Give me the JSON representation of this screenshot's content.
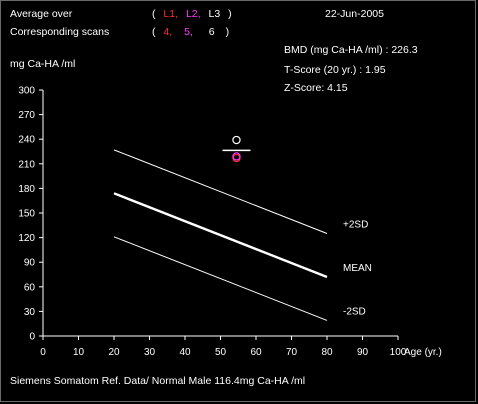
{
  "header": {
    "average_over_label": "Average over",
    "paren_open": "(",
    "paren_close": ")",
    "vertebrae": [
      "L1,",
      "L2,",
      "L3"
    ],
    "date": "22-Jun-2005",
    "scans_label": "Corresponding scans",
    "scans": [
      "4,",
      "5,",
      "6"
    ]
  },
  "results": {
    "bmd": "BMD (mg Ca-HA /ml) : 226.3",
    "t_score": "T-Score (20 yr.) : 1.95",
    "z_score": "Z-Score: 4.15"
  },
  "footer": {
    "reference": "Siemens Somatom Ref. Data/ Normal Male 116.4mg Ca-HA /ml"
  },
  "colors": {
    "background": "#000000",
    "foreground": "#ffffff",
    "l1": "#ff2a2a",
    "l2": "#ff3cff",
    "l3": "#ffffff"
  },
  "chart_data": {
    "type": "line",
    "title": "",
    "xlabel": "Age (yr.)",
    "ylabel": "mg Ca-HA /ml",
    "xlim": [
      0,
      100
    ],
    "ylim": [
      0,
      300
    ],
    "xticks": [
      0,
      10,
      20,
      30,
      40,
      50,
      60,
      70,
      80,
      90,
      100
    ],
    "yticks": [
      0,
      30,
      60,
      90,
      120,
      150,
      180,
      210,
      240,
      270,
      300
    ],
    "grid": false,
    "series": [
      {
        "name": "+2SD",
        "x": [
          20,
          80
        ],
        "y": [
          227,
          125
        ],
        "color": "#ffffff",
        "weight": "thin"
      },
      {
        "name": "MEAN",
        "x": [
          20,
          80
        ],
        "y": [
          174,
          72
        ],
        "color": "#ffffff",
        "weight": "thick"
      },
      {
        "name": "-2SD",
        "x": [
          20,
          80
        ],
        "y": [
          121,
          19
        ],
        "color": "#ffffff",
        "weight": "thin"
      }
    ],
    "patient_points": [
      {
        "label": "L1",
        "x": 54.5,
        "y": 217,
        "color": "#ff2a2a"
      },
      {
        "label": "L2",
        "x": 54.5,
        "y": 219,
        "color": "#ff3cff"
      },
      {
        "label": "L3",
        "x": 54.5,
        "y": 239,
        "color": "#ffffff"
      }
    ],
    "patient_mean": {
      "x": 54.5,
      "y": 226.3
    }
  }
}
